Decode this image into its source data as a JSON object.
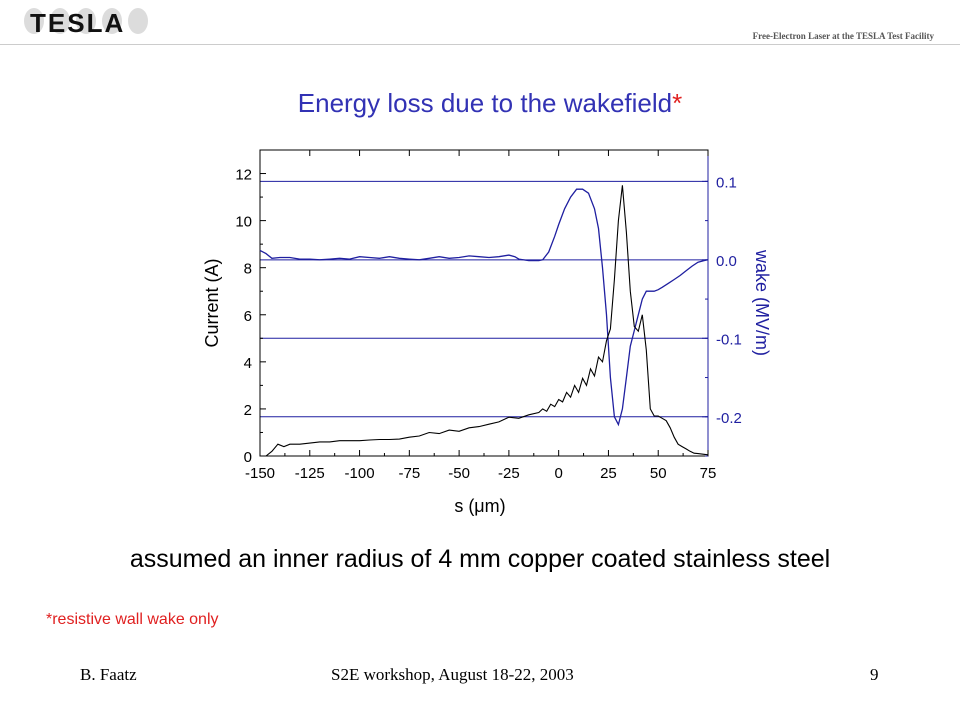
{
  "header": {
    "logo_text": "TESLA",
    "facility": "Free-Electron Laser at the TESLA Test Facility"
  },
  "slide": {
    "title": "Energy loss due to the wakefield",
    "title_mark": "*",
    "statement": "assumed an inner radius of 4 mm copper coated stainless steel",
    "footnote": "*resistive wall wake only"
  },
  "footer": {
    "author": "B. Faatz",
    "event": "S2E workshop, August 18-22, 2003",
    "page": "9"
  },
  "colors": {
    "title": "#3232b4",
    "wake": "#1f1fa0",
    "current": "#000000",
    "footnote": "#e02020"
  },
  "chart_data": {
    "type": "line",
    "xlabel": "s (μm)",
    "ylabel_left": "Current (A)",
    "ylabel_right": "wake (MV/m)",
    "xlim": [
      -150,
      75
    ],
    "ylim_left": [
      0,
      13
    ],
    "ylim_right": [
      -0.25,
      0.14
    ],
    "x_ticks": [
      "-150",
      "-125",
      "-100",
      "-75",
      "-50",
      "-25",
      "0",
      "25",
      "50",
      "75"
    ],
    "y_ticks_left": [
      "0",
      "2",
      "4",
      "6",
      "8",
      "10",
      "12"
    ],
    "y_ticks_right": [
      "0.1",
      "0.0",
      "-0.1",
      "-0.2"
    ],
    "grid": "horizontal lines at right-axis ticks",
    "series": [
      {
        "axis": "left",
        "points": [
          [
            -150,
            0.0
          ],
          [
            -147,
            0.0
          ],
          [
            -144,
            0.2
          ],
          [
            -141,
            0.5
          ],
          [
            -138,
            0.4
          ],
          [
            -135,
            0.5
          ],
          [
            -130,
            0.5
          ],
          [
            -125,
            0.55
          ],
          [
            -120,
            0.6
          ],
          [
            -115,
            0.6
          ],
          [
            -110,
            0.65
          ],
          [
            -105,
            0.65
          ],
          [
            -100,
            0.65
          ],
          [
            -95,
            0.68
          ],
          [
            -90,
            0.7
          ],
          [
            -85,
            0.7
          ],
          [
            -80,
            0.72
          ],
          [
            -75,
            0.8
          ],
          [
            -70,
            0.85
          ],
          [
            -65,
            1.0
          ],
          [
            -60,
            0.95
          ],
          [
            -55,
            1.1
          ],
          [
            -50,
            1.05
          ],
          [
            -45,
            1.2
          ],
          [
            -40,
            1.25
          ],
          [
            -35,
            1.35
          ],
          [
            -30,
            1.45
          ],
          [
            -25,
            1.65
          ],
          [
            -20,
            1.6
          ],
          [
            -15,
            1.75
          ],
          [
            -10,
            1.85
          ],
          [
            -8,
            2.0
          ],
          [
            -6,
            1.9
          ],
          [
            -4,
            2.2
          ],
          [
            -2,
            2.1
          ],
          [
            0,
            2.4
          ],
          [
            2,
            2.3
          ],
          [
            4,
            2.7
          ],
          [
            6,
            2.5
          ],
          [
            8,
            3.0
          ],
          [
            10,
            2.7
          ],
          [
            12,
            3.3
          ],
          [
            14,
            3.0
          ],
          [
            16,
            3.7
          ],
          [
            18,
            3.4
          ],
          [
            20,
            4.2
          ],
          [
            22,
            4.0
          ],
          [
            24,
            4.9
          ],
          [
            26,
            5.4
          ],
          [
            28,
            7.5
          ],
          [
            30,
            10.0
          ],
          [
            32,
            11.5
          ],
          [
            34,
            9.5
          ],
          [
            36,
            7.0
          ],
          [
            38,
            5.5
          ],
          [
            40,
            5.3
          ],
          [
            42,
            6.0
          ],
          [
            44,
            4.5
          ],
          [
            46,
            2.0
          ],
          [
            48,
            1.7
          ],
          [
            50,
            1.7
          ],
          [
            52,
            1.6
          ],
          [
            54,
            1.5
          ],
          [
            56,
            1.2
          ],
          [
            58,
            0.8
          ],
          [
            60,
            0.5
          ],
          [
            62,
            0.4
          ],
          [
            64,
            0.3
          ],
          [
            66,
            0.2
          ],
          [
            68,
            0.12
          ],
          [
            70,
            0.1
          ],
          [
            72,
            0.08
          ],
          [
            75,
            0.05
          ]
        ]
      },
      {
        "axis": "right",
        "points": [
          [
            -150,
            0.012
          ],
          [
            -147,
            0.008
          ],
          [
            -144,
            0.002
          ],
          [
            -140,
            0.003
          ],
          [
            -135,
            0.003
          ],
          [
            -130,
            0.001
          ],
          [
            -125,
            0.001
          ],
          [
            -120,
            0.0
          ],
          [
            -115,
            0.001
          ],
          [
            -110,
            0.002
          ],
          [
            -105,
            0.001
          ],
          [
            -100,
            0.004
          ],
          [
            -95,
            0.003
          ],
          [
            -90,
            0.002
          ],
          [
            -85,
            0.004
          ],
          [
            -80,
            0.002
          ],
          [
            -75,
            0.001
          ],
          [
            -70,
            0.0
          ],
          [
            -65,
            0.002
          ],
          [
            -60,
            0.004
          ],
          [
            -55,
            0.002
          ],
          [
            -50,
            0.003
          ],
          [
            -45,
            0.005
          ],
          [
            -40,
            0.004
          ],
          [
            -35,
            0.003
          ],
          [
            -30,
            0.004
          ],
          [
            -25,
            0.006
          ],
          [
            -22,
            0.004
          ],
          [
            -20,
            0.001
          ],
          [
            -15,
            -0.001
          ],
          [
            -10,
            -0.001
          ],
          [
            -8,
            0.0
          ],
          [
            -5,
            0.01
          ],
          [
            -2,
            0.03
          ],
          [
            0,
            0.045
          ],
          [
            3,
            0.065
          ],
          [
            6,
            0.08
          ],
          [
            9,
            0.09
          ],
          [
            12,
            0.09
          ],
          [
            15,
            0.085
          ],
          [
            18,
            0.065
          ],
          [
            20,
            0.04
          ],
          [
            22,
            -0.01
          ],
          [
            24,
            -0.07
          ],
          [
            26,
            -0.15
          ],
          [
            28,
            -0.2
          ],
          [
            30,
            -0.21
          ],
          [
            32,
            -0.19
          ],
          [
            34,
            -0.15
          ],
          [
            36,
            -0.11
          ],
          [
            38,
            -0.09
          ],
          [
            40,
            -0.07
          ],
          [
            42,
            -0.05
          ],
          [
            44,
            -0.04
          ],
          [
            46,
            -0.04
          ],
          [
            48,
            -0.04
          ],
          [
            50,
            -0.038
          ],
          [
            52,
            -0.035
          ],
          [
            55,
            -0.03
          ],
          [
            58,
            -0.025
          ],
          [
            61,
            -0.02
          ],
          [
            64,
            -0.014
          ],
          [
            67,
            -0.008
          ],
          [
            70,
            -0.003
          ],
          [
            73,
            -0.001
          ],
          [
            75,
            0.0
          ]
        ]
      }
    ]
  }
}
